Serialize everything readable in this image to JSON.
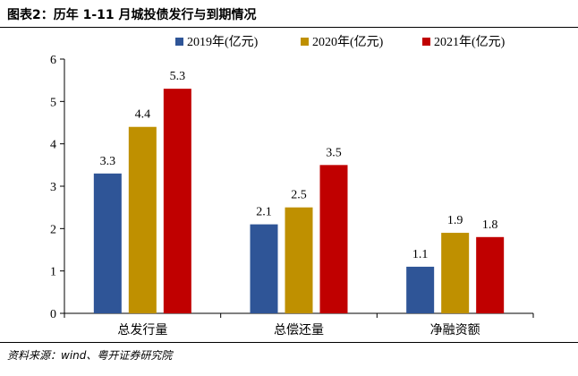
{
  "title": "图表2：历年 1-11 月城投债发行与到期情况",
  "source": "资料来源：wind、粤开证券研究院",
  "chart_data": {
    "type": "bar",
    "categories": [
      "总发行量",
      "总偿还量",
      "净融资额"
    ],
    "series": [
      {
        "name": "2019年(亿元)",
        "color": "#2F5597",
        "values": [
          3.3,
          2.1,
          1.1
        ]
      },
      {
        "name": "2020年(亿元)",
        "color": "#BF9000",
        "values": [
          4.4,
          2.5,
          1.9
        ]
      },
      {
        "name": "2021年(亿元)",
        "color": "#C00000",
        "values": [
          5.3,
          3.5,
          1.8
        ]
      }
    ],
    "ylim": [
      0,
      6
    ],
    "yticks": [
      0,
      1,
      2,
      3,
      4,
      5,
      6
    ],
    "legend": "top-center",
    "grid": false
  }
}
